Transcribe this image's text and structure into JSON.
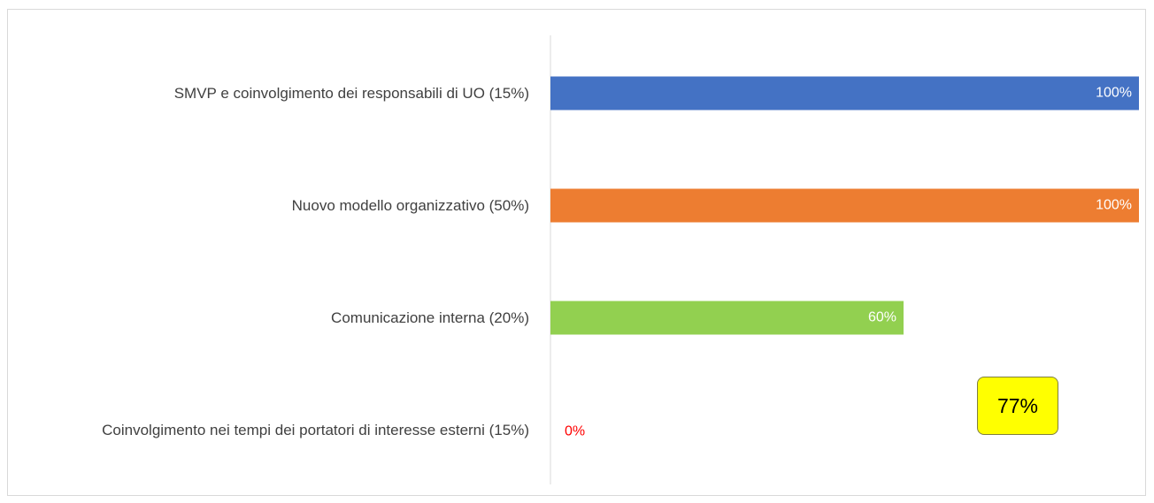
{
  "chart_data": {
    "type": "bar",
    "orientation": "horizontal",
    "categories": [
      "SMVP e coinvolgimento dei responsabili di UO (15%)",
      "Nuovo modello organizzativo (50%)",
      "Comunicazione interna (20%)",
      "Coinvolgimento nei tempi dei portatori di interesse esterni (15%)"
    ],
    "values": [
      100,
      100,
      60,
      0
    ],
    "value_labels": [
      "100%",
      "100%",
      "60%",
      "0%"
    ],
    "colors": [
      "#4472c4",
      "#ed7d31",
      "#92d050",
      "#ff0000"
    ],
    "xlim": [
      0,
      100
    ],
    "annotation": "77%"
  }
}
